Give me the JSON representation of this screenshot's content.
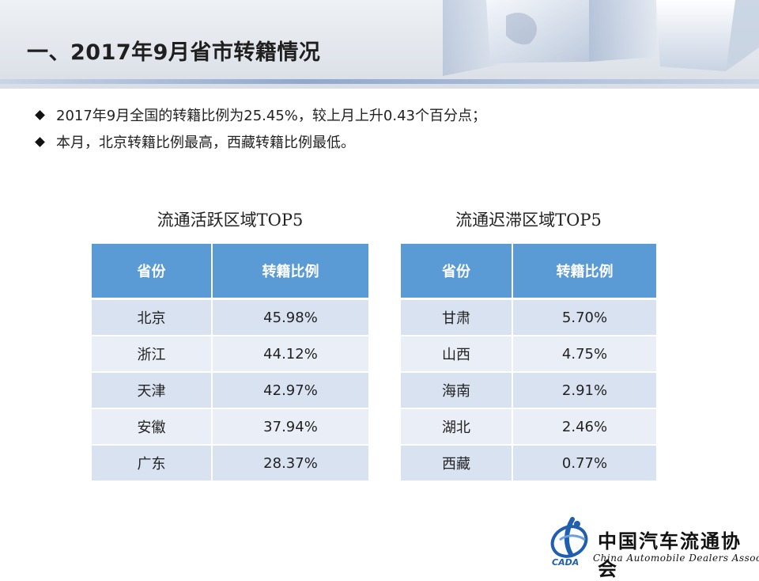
{
  "header": {
    "title": "一、2017年9月省市转籍情况"
  },
  "bullets": [
    "2017年9月全国的转籍比例为25.45%，较上月上升0.43个百分点；",
    "本月，北京转籍比例最高，西藏转籍比例最低。"
  ],
  "active_table": {
    "title": "流通活跃区域TOP5",
    "headers": [
      "省份",
      "转籍比例"
    ],
    "rows": [
      [
        "北京",
        "45.98%"
      ],
      [
        "浙江",
        "44.12%"
      ],
      [
        "天津",
        "42.97%"
      ],
      [
        "安徽",
        "37.94%"
      ],
      [
        "广东",
        "28.37%"
      ]
    ]
  },
  "stagnant_table": {
    "title": "流通迟滞区域TOP5",
    "headers": [
      "省份",
      "转籍比例"
    ],
    "rows": [
      [
        "甘肃",
        "5.70%"
      ],
      [
        "山西",
        "4.75%"
      ],
      [
        "海南",
        "2.91%"
      ],
      [
        "湖北",
        "2.46%"
      ],
      [
        "西藏",
        "0.77%"
      ]
    ]
  },
  "logo": {
    "name_cn": "中国汽车流通协会",
    "name_en": "China Automobile Dealers Association",
    "mark_text": "CADA"
  },
  "colors": {
    "header_fill": "#5b9bd5",
    "row_odd": "#d9e2f1",
    "row_even": "#eaeff7"
  }
}
